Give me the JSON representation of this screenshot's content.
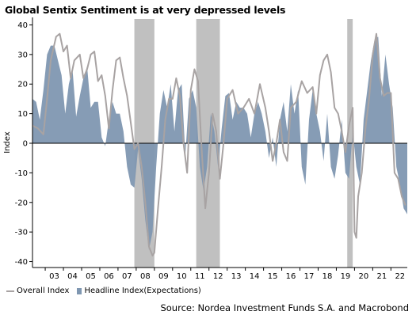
{
  "title": "Global Sentix Sentiment is at very depressed levels",
  "source": "Source: Nordea Investment Funds S.A. and Macrobond",
  "colors": {
    "headline_fill": "#7f97b1",
    "overall_line": "#a8a3a3",
    "recession_band": "#c0c0c0"
  },
  "chart_data": {
    "type": "area",
    "title": "Global Sentix Sentiment is at very depressed levels",
    "xlabel": "",
    "ylabel": "Index",
    "ylim": [
      -42,
      42
    ],
    "xlim": [
      2002.3,
      2022.9
    ],
    "yticks": [
      -40,
      -30,
      -20,
      -10,
      0,
      10,
      20,
      30,
      40
    ],
    "xtick_labels": [
      "03",
      "04",
      "05",
      "06",
      "07",
      "08",
      "09",
      "10",
      "11",
      "12",
      "13",
      "14",
      "15",
      "16",
      "17",
      "18",
      "19",
      "20",
      "21",
      "22"
    ],
    "grid": false,
    "legend_position": "bottom-left",
    "shaded_periods": [
      [
        2007.9,
        2009.0
      ],
      [
        2011.3,
        2012.6
      ],
      [
        2019.6,
        2019.9
      ]
    ],
    "series": [
      {
        "name": "Overall Index",
        "style": "line",
        "x": [
          2002.3,
          2002.6,
          2002.9,
          2003.1,
          2003.3,
          2003.6,
          2003.8,
          2004.0,
          2004.2,
          2004.4,
          2004.6,
          2004.9,
          2005.1,
          2005.3,
          2005.5,
          2005.7,
          2005.9,
          2006.1,
          2006.3,
          2006.5,
          2006.7,
          2006.9,
          2007.1,
          2007.3,
          2007.5,
          2007.7,
          2007.9,
          2008.1,
          2008.3,
          2008.5,
          2008.7,
          2008.9,
          2009.0,
          2009.2,
          2009.4,
          2009.6,
          2009.8,
          2010.0,
          2010.2,
          2010.4,
          2010.6,
          2010.8,
          2011.0,
          2011.2,
          2011.4,
          2011.6,
          2011.8,
          2012.0,
          2012.2,
          2012.4,
          2012.6,
          2012.8,
          2013.0,
          2013.3,
          2013.6,
          2013.9,
          2014.2,
          2014.5,
          2014.8,
          2015.1,
          2015.3,
          2015.5,
          2015.7,
          2015.9,
          2016.1,
          2016.3,
          2016.5,
          2016.8,
          2017.1,
          2017.4,
          2017.7,
          2017.9,
          2018.1,
          2018.3,
          2018.5,
          2018.7,
          2018.9,
          2019.1,
          2019.3,
          2019.5,
          2019.7,
          2019.9,
          2020.0,
          2020.1,
          2020.2,
          2020.4,
          2020.6,
          2020.8,
          2021.0,
          2021.2,
          2021.4,
          2021.6,
          2021.8,
          2022.0,
          2022.2,
          2022.4,
          2022.6,
          2022.8
        ],
        "y": [
          6,
          5,
          3,
          15,
          28,
          36,
          37,
          31,
          33,
          22,
          28,
          30,
          22,
          25,
          30,
          31,
          21,
          23,
          16,
          5,
          18,
          28,
          29,
          22,
          16,
          7,
          -2,
          0,
          -8,
          -20,
          -35,
          -38,
          -37,
          -22,
          -8,
          8,
          15,
          15,
          22,
          16,
          0,
          -10,
          18,
          25,
          21,
          -2,
          -22,
          -10,
          10,
          4,
          -12,
          0,
          15,
          18,
          10,
          12,
          15,
          10,
          20,
          12,
          4,
          -6,
          0,
          8,
          -3,
          -6,
          12,
          14,
          21,
          17,
          19,
          10,
          23,
          28,
          30,
          24,
          12,
          10,
          4,
          -3,
          6,
          12,
          -30,
          -32,
          -18,
          -10,
          5,
          15,
          30,
          37,
          22,
          16,
          17,
          17,
          -10,
          -12,
          -18,
          -21
        ]
      },
      {
        "name": "Headline Index(Expectations)",
        "style": "area",
        "x": [
          2002.3,
          2002.5,
          2002.7,
          2002.9,
          2003.1,
          2003.3,
          2003.5,
          2003.7,
          2003.9,
          2004.1,
          2004.3,
          2004.5,
          2004.7,
          2004.9,
          2005.1,
          2005.3,
          2005.5,
          2005.7,
          2005.9,
          2006.1,
          2006.3,
          2006.5,
          2006.7,
          2006.9,
          2007.1,
          2007.3,
          2007.5,
          2007.7,
          2007.9,
          2008.1,
          2008.3,
          2008.5,
          2008.7,
          2008.9,
          2009.1,
          2009.3,
          2009.5,
          2009.7,
          2009.9,
          2010.1,
          2010.3,
          2010.5,
          2010.7,
          2010.9,
          2011.1,
          2011.3,
          2011.5,
          2011.7,
          2011.9,
          2012.1,
          2012.3,
          2012.5,
          2012.7,
          2012.9,
          2013.1,
          2013.3,
          2013.5,
          2013.7,
          2013.9,
          2014.1,
          2014.3,
          2014.5,
          2014.7,
          2014.9,
          2015.1,
          2015.3,
          2015.5,
          2015.7,
          2015.9,
          2016.1,
          2016.3,
          2016.5,
          2016.7,
          2016.9,
          2017.1,
          2017.3,
          2017.5,
          2017.7,
          2017.9,
          2018.1,
          2018.3,
          2018.5,
          2018.7,
          2018.9,
          2019.1,
          2019.3,
          2019.5,
          2019.7,
          2019.9,
          2020.1,
          2020.3,
          2020.5,
          2020.7,
          2020.9,
          2021.1,
          2021.3,
          2021.5,
          2021.7,
          2021.9,
          2022.1,
          2022.3,
          2022.5,
          2022.7,
          2022.9
        ],
        "y": [
          15,
          14,
          8,
          18,
          30,
          33,
          33,
          28,
          23,
          10,
          20,
          25,
          9,
          16,
          22,
          26,
          12,
          14,
          14,
          2,
          -1,
          8,
          14,
          10,
          10,
          4,
          -8,
          -14,
          -15,
          -2,
          -12,
          -26,
          -36,
          -30,
          -8,
          10,
          18,
          12,
          20,
          4,
          18,
          20,
          -4,
          15,
          18,
          12,
          -8,
          -16,
          -8,
          10,
          4,
          -8,
          5,
          16,
          17,
          8,
          14,
          12,
          12,
          10,
          2,
          10,
          14,
          10,
          4,
          -5,
          2,
          -8,
          8,
          14,
          4,
          20,
          10,
          18,
          -8,
          -14,
          8,
          18,
          10,
          4,
          -6,
          10,
          -8,
          -12,
          -4,
          8,
          -10,
          -12,
          4,
          -8,
          -14,
          8,
          18,
          28,
          35,
          36,
          16,
          30,
          20,
          12,
          -8,
          -14,
          -22,
          -24
        ]
      }
    ]
  },
  "legend": {
    "overall": "Overall Index",
    "headline": "Headline Index(Expectations)"
  }
}
